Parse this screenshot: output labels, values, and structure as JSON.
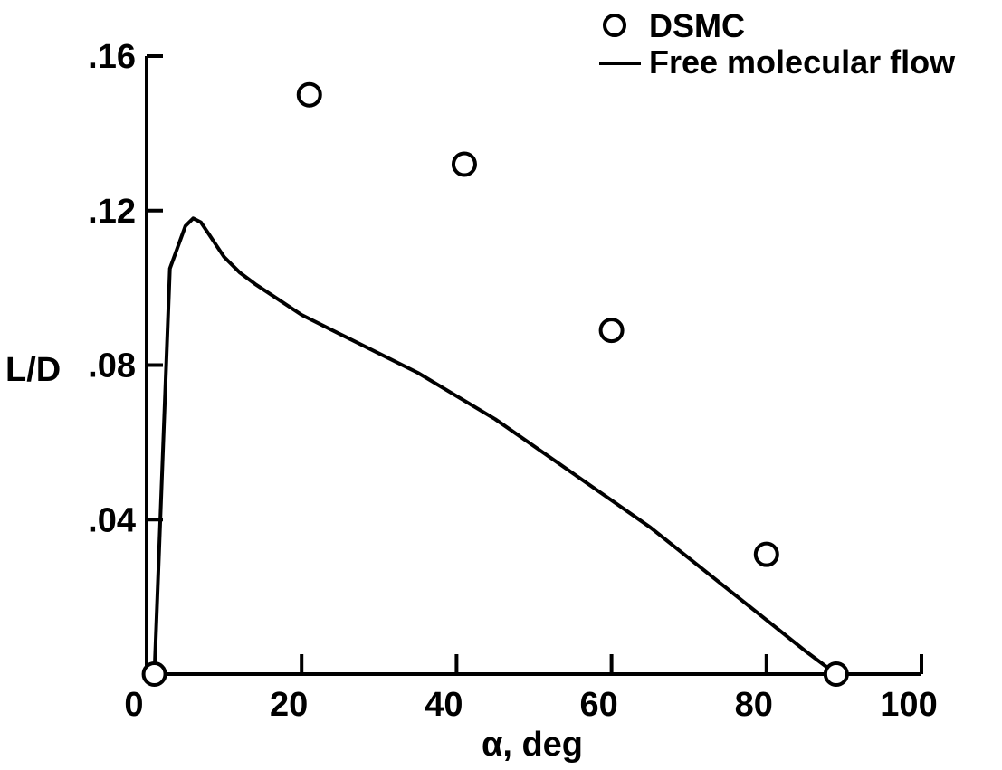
{
  "chart_data": {
    "type": "scatter",
    "title": "",
    "xlabel": "α, deg",
    "ylabel": "L/D",
    "xlim": [
      0,
      100
    ],
    "ylim": [
      0,
      0.16
    ],
    "x_ticks": [
      0,
      20,
      40,
      60,
      80,
      100
    ],
    "x_tick_labels": [
      "0",
      "20",
      "40",
      "60",
      "80",
      "100"
    ],
    "y_ticks": [
      0.04,
      0.08,
      0.12,
      0.16
    ],
    "y_tick_labels": [
      ".04",
      ".08",
      ".12",
      ".16"
    ],
    "grid": false,
    "legend_position": "top-right",
    "series": [
      {
        "name": "DSMC",
        "kind": "markers",
        "marker": "open-circle",
        "x": [
          1,
          21,
          41,
          60,
          80,
          89
        ],
        "y": [
          0.0,
          0.15,
          0.132,
          0.089,
          0.031,
          0.0
        ]
      },
      {
        "name": "Free molecular flow",
        "kind": "line",
        "x": [
          1,
          3,
          5,
          6,
          7,
          8,
          9,
          10,
          12,
          14,
          17,
          20,
          25,
          30,
          35,
          40,
          45,
          50,
          55,
          60,
          65,
          70,
          75,
          80,
          85,
          89
        ],
        "y": [
          0.0,
          0.105,
          0.116,
          0.118,
          0.117,
          0.114,
          0.111,
          0.108,
          0.104,
          0.101,
          0.097,
          0.093,
          0.088,
          0.083,
          0.078,
          0.072,
          0.066,
          0.059,
          0.052,
          0.045,
          0.038,
          0.03,
          0.022,
          0.014,
          0.006,
          0.0
        ]
      }
    ],
    "colors": {
      "axis": "#000000",
      "line": "#000000",
      "marker_fill": "#ffffff"
    }
  }
}
